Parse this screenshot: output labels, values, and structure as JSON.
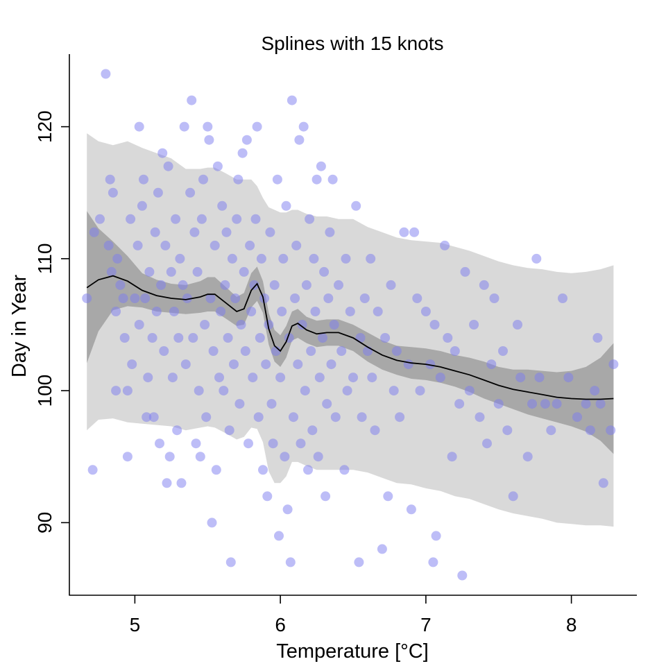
{
  "chart_data": {
    "type": "scatter",
    "title": "Splines with 15 knots",
    "xlabel": "Temperature [°C]",
    "ylabel": "Day in Year",
    "xlim": [
      4.55,
      8.45
    ],
    "ylim": [
      84.5,
      125.5
    ],
    "xticks": [
      5,
      6,
      7,
      8
    ],
    "yticks": [
      90,
      100,
      110,
      120
    ],
    "grid": false,
    "legend": "none",
    "colors": {
      "points": "#7b7bef",
      "prediction_band": "#d9d9d9",
      "confidence_band": "#a8a8a8",
      "fit_line": "#000000"
    },
    "series": [
      {
        "type": "scatter",
        "points": [
          [
            4.67,
            107
          ],
          [
            4.71,
            94
          ],
          [
            4.72,
            112
          ],
          [
            4.76,
            113
          ],
          [
            4.8,
            124
          ],
          [
            4.82,
            111
          ],
          [
            4.83,
            116
          ],
          [
            4.84,
            109
          ],
          [
            4.85,
            115
          ],
          [
            4.87,
            100
          ],
          [
            4.87,
            106
          ],
          [
            4.88,
            110
          ],
          [
            4.9,
            108
          ],
          [
            4.92,
            107
          ],
          [
            4.93,
            104
          ],
          [
            4.95,
            100
          ],
          [
            4.95,
            95
          ],
          [
            4.97,
            113
          ],
          [
            4.98,
            102
          ],
          [
            5.0,
            107
          ],
          [
            5.02,
            111
          ],
          [
            5.03,
            120
          ],
          [
            5.03,
            105
          ],
          [
            5.05,
            114
          ],
          [
            5.06,
            116
          ],
          [
            5.07,
            107
          ],
          [
            5.08,
            98
          ],
          [
            5.09,
            101
          ],
          [
            5.1,
            109
          ],
          [
            5.12,
            104
          ],
          [
            5.13,
            98
          ],
          [
            5.14,
            112
          ],
          [
            5.15,
            106
          ],
          [
            5.16,
            115
          ],
          [
            5.17,
            96
          ],
          [
            5.18,
            108
          ],
          [
            5.19,
            118
          ],
          [
            5.2,
            103
          ],
          [
            5.21,
            111
          ],
          [
            5.22,
            93
          ],
          [
            5.23,
            117
          ],
          [
            5.24,
            95
          ],
          [
            5.25,
            109
          ],
          [
            5.26,
            101
          ],
          [
            5.27,
            106
          ],
          [
            5.28,
            113
          ],
          [
            5.29,
            97
          ],
          [
            5.3,
            104
          ],
          [
            5.31,
            110
          ],
          [
            5.32,
            93
          ],
          [
            5.33,
            108
          ],
          [
            5.34,
            120
          ],
          [
            5.35,
            102
          ],
          [
            5.36,
            107
          ],
          [
            5.38,
            115
          ],
          [
            5.39,
            122
          ],
          [
            5.4,
            104
          ],
          [
            5.41,
            112
          ],
          [
            5.42,
            96
          ],
          [
            5.43,
            109
          ],
          [
            5.44,
            100
          ],
          [
            5.45,
            95
          ],
          [
            5.46,
            113
          ],
          [
            5.47,
            116
          ],
          [
            5.48,
            105
          ],
          [
            5.49,
            98
          ],
          [
            5.5,
            120
          ],
          [
            5.51,
            119
          ],
          [
            5.52,
            107
          ],
          [
            5.53,
            90
          ],
          [
            5.54,
            103
          ],
          [
            5.55,
            111
          ],
          [
            5.56,
            94
          ],
          [
            5.57,
            117
          ],
          [
            5.58,
            101
          ],
          [
            5.59,
            106
          ],
          [
            5.6,
            114
          ],
          [
            5.61,
            100
          ],
          [
            5.62,
            108
          ],
          [
            5.63,
            112
          ],
          [
            5.64,
            104
          ],
          [
            5.65,
            97
          ],
          [
            5.66,
            87
          ],
          [
            5.67,
            110
          ],
          [
            5.68,
            102
          ],
          [
            5.69,
            107
          ],
          [
            5.7,
            113
          ],
          [
            5.71,
            116
          ],
          [
            5.72,
            99
          ],
          [
            5.73,
            105
          ],
          [
            5.74,
            118
          ],
          [
            5.75,
            109
          ],
          [
            5.76,
            103
          ],
          [
            5.77,
            119
          ],
          [
            5.78,
            96
          ],
          [
            5.79,
            111
          ],
          [
            5.8,
            106
          ],
          [
            5.81,
            101
          ],
          [
            5.82,
            108
          ],
          [
            5.83,
            113
          ],
          [
            5.84,
            120
          ],
          [
            5.85,
            98
          ],
          [
            5.86,
            104
          ],
          [
            5.87,
            110
          ],
          [
            5.88,
            94
          ],
          [
            5.89,
            107
          ],
          [
            5.9,
            102
          ],
          [
            5.91,
            92
          ],
          [
            5.92,
            105
          ],
          [
            5.93,
            112
          ],
          [
            5.94,
            99
          ],
          [
            5.95,
            96
          ],
          [
            5.96,
            108
          ],
          [
            5.97,
            103
          ],
          [
            5.98,
            116
          ],
          [
            5.99,
            89
          ],
          [
            6.0,
            101
          ],
          [
            6.01,
            106
          ],
          [
            6.02,
            110
          ],
          [
            6.03,
            95
          ],
          [
            6.04,
            114
          ],
          [
            6.05,
            91
          ],
          [
            6.06,
            104
          ],
          [
            6.07,
            87
          ],
          [
            6.08,
            122
          ],
          [
            6.09,
            98
          ],
          [
            6.1,
            107
          ],
          [
            6.11,
            111
          ],
          [
            6.12,
            102
          ],
          [
            6.13,
            119
          ],
          [
            6.14,
            96
          ],
          [
            6.15,
            105
          ],
          [
            6.16,
            120
          ],
          [
            6.17,
            100
          ],
          [
            6.18,
            108
          ],
          [
            6.19,
            94
          ],
          [
            6.2,
            113
          ],
          [
            6.21,
            103
          ],
          [
            6.22,
            97
          ],
          [
            6.23,
            110
          ],
          [
            6.24,
            106
          ],
          [
            6.25,
            116
          ],
          [
            6.26,
            95
          ],
          [
            6.27,
            101
          ],
          [
            6.28,
            117
          ],
          [
            6.29,
            104
          ],
          [
            6.3,
            109
          ],
          [
            6.31,
            92
          ],
          [
            6.32,
            99
          ],
          [
            6.33,
            107
          ],
          [
            6.34,
            112
          ],
          [
            6.35,
            102
          ],
          [
            6.36,
            116
          ],
          [
            6.37,
            105
          ],
          [
            6.38,
            98
          ],
          [
            6.4,
            108
          ],
          [
            6.42,
            103
          ],
          [
            6.44,
            94
          ],
          [
            6.45,
            110
          ],
          [
            6.46,
            100
          ],
          [
            6.48,
            106
          ],
          [
            6.5,
            101
          ],
          [
            6.52,
            114
          ],
          [
            6.54,
            87
          ],
          [
            6.55,
            104
          ],
          [
            6.56,
            98
          ],
          [
            6.58,
            107
          ],
          [
            6.6,
            103
          ],
          [
            6.62,
            110
          ],
          [
            6.63,
            101
          ],
          [
            6.65,
            97
          ],
          [
            6.67,
            106
          ],
          [
            6.7,
            88
          ],
          [
            6.72,
            104
          ],
          [
            6.74,
            92
          ],
          [
            6.76,
            108
          ],
          [
            6.78,
            100
          ],
          [
            6.8,
            103
          ],
          [
            6.82,
            98
          ],
          [
            6.85,
            112
          ],
          [
            6.88,
            102
          ],
          [
            6.9,
            91
          ],
          [
            6.92,
            112
          ],
          [
            6.94,
            107
          ],
          [
            6.96,
            100
          ],
          [
            7.0,
            106
          ],
          [
            7.03,
            102
          ],
          [
            7.05,
            87
          ],
          [
            7.06,
            105
          ],
          [
            7.07,
            89
          ],
          [
            7.1,
            101
          ],
          [
            7.13,
            111
          ],
          [
            7.15,
            104
          ],
          [
            7.18,
            95
          ],
          [
            7.2,
            103
          ],
          [
            7.23,
            99
          ],
          [
            7.25,
            86
          ],
          [
            7.27,
            109
          ],
          [
            7.3,
            100
          ],
          [
            7.33,
            105
          ],
          [
            7.37,
            98
          ],
          [
            7.4,
            108
          ],
          [
            7.42,
            96
          ],
          [
            7.45,
            102
          ],
          [
            7.47,
            107
          ],
          [
            7.5,
            99
          ],
          [
            7.53,
            103
          ],
          [
            7.56,
            97
          ],
          [
            7.6,
            92
          ],
          [
            7.63,
            105
          ],
          [
            7.65,
            101
          ],
          [
            7.7,
            95
          ],
          [
            7.73,
            99
          ],
          [
            7.76,
            110
          ],
          [
            7.78,
            101
          ],
          [
            7.82,
            99
          ],
          [
            7.86,
            97
          ],
          [
            7.9,
            99
          ],
          [
            7.94,
            107
          ],
          [
            7.98,
            101
          ],
          [
            8.04,
            98
          ],
          [
            8.1,
            99
          ],
          [
            8.13,
            97
          ],
          [
            8.16,
            100
          ],
          [
            8.18,
            104
          ],
          [
            8.2,
            99
          ],
          [
            8.22,
            93
          ],
          [
            8.27,
            97
          ],
          [
            8.29,
            102
          ]
        ]
      },
      {
        "type": "line",
        "x": [
          4.67,
          4.75,
          4.85,
          4.95,
          5.05,
          5.15,
          5.25,
          5.35,
          5.45,
          5.5,
          5.55,
          5.62,
          5.7,
          5.75,
          5.8,
          5.84,
          5.88,
          5.92,
          5.96,
          6.0,
          6.04,
          6.08,
          6.12,
          6.18,
          6.25,
          6.32,
          6.4,
          6.5,
          6.6,
          6.7,
          6.8,
          6.9,
          7.0,
          7.1,
          7.2,
          7.3,
          7.4,
          7.5,
          7.6,
          7.7,
          7.8,
          7.9,
          8.0,
          8.1,
          8.2,
          8.29
        ],
        "y": [
          107.8,
          108.4,
          108.7,
          108.3,
          107.6,
          107.2,
          107.0,
          106.9,
          107.1,
          107.3,
          107.3,
          106.7,
          106.0,
          106.2,
          107.6,
          108.1,
          107.1,
          104.7,
          103.4,
          103.0,
          103.7,
          104.9,
          105.1,
          104.6,
          104.3,
          104.4,
          104.4,
          104.0,
          103.3,
          102.7,
          102.3,
          102.1,
          102.0,
          101.8,
          101.5,
          101.2,
          100.8,
          100.4,
          100.1,
          99.9,
          99.7,
          99.5,
          99.4,
          99.35,
          99.35,
          99.4
        ],
        "lower": [
          102.1,
          104.5,
          106.1,
          106.4,
          106.3,
          106.0,
          105.9,
          105.8,
          105.9,
          106.0,
          106.0,
          105.5,
          104.9,
          105.0,
          106.3,
          106.8,
          105.9,
          103.5,
          102.2,
          101.8,
          102.5,
          103.8,
          104.0,
          103.6,
          103.3,
          103.4,
          103.4,
          103.0,
          102.2,
          101.6,
          101.2,
          100.9,
          100.8,
          100.6,
          100.3,
          99.9,
          99.4,
          99.0,
          98.6,
          98.2,
          97.9,
          97.6,
          97.3,
          96.9,
          96.2,
          95.2
        ],
        "upper": [
          113.6,
          112.3,
          111.3,
          110.2,
          108.9,
          108.4,
          108.1,
          108.0,
          108.3,
          108.6,
          108.6,
          107.9,
          107.1,
          107.4,
          108.9,
          109.4,
          108.3,
          105.9,
          104.6,
          104.2,
          104.9,
          106.0,
          106.2,
          105.6,
          105.3,
          105.4,
          105.4,
          105.0,
          104.4,
          103.8,
          103.4,
          103.3,
          103.2,
          103.0,
          102.7,
          102.5,
          102.2,
          101.8,
          101.6,
          101.6,
          101.5,
          101.4,
          101.5,
          101.8,
          102.5,
          103.6
        ],
        "pred_lower": [
          97.0,
          97.8,
          97.9,
          97.6,
          97.5,
          97.4,
          97.3,
          97.0,
          97.2,
          97.3,
          97.2,
          96.8,
          96.3,
          96.5,
          97.2,
          97.1,
          96.1,
          93.9,
          93.0,
          93.0,
          93.5,
          94.6,
          94.6,
          94.3,
          94.0,
          94.0,
          94.0,
          94.0,
          93.8,
          93.4,
          93.0,
          92.9,
          92.6,
          92.4,
          92.0,
          91.8,
          91.4,
          91.0,
          90.7,
          90.5,
          90.3,
          90.0,
          89.9,
          89.8,
          89.8,
          89.7
        ],
        "pred_upper": [
          119.5,
          118.9,
          118.6,
          118.9,
          118.4,
          118.0,
          117.6,
          116.8,
          116.8,
          116.9,
          116.9,
          116.5,
          116.0,
          116.0,
          116.0,
          115.5,
          114.6,
          113.9,
          113.7,
          113.5,
          113.5,
          113.7,
          113.7,
          113.4,
          113.2,
          113.2,
          113.0,
          113.0,
          112.4,
          112.0,
          111.6,
          111.4,
          111.3,
          111.2,
          110.9,
          110.6,
          110.2,
          109.8,
          109.5,
          109.3,
          109.2,
          109.0,
          108.9,
          109.0,
          109.2,
          109.5
        ]
      }
    ]
  }
}
